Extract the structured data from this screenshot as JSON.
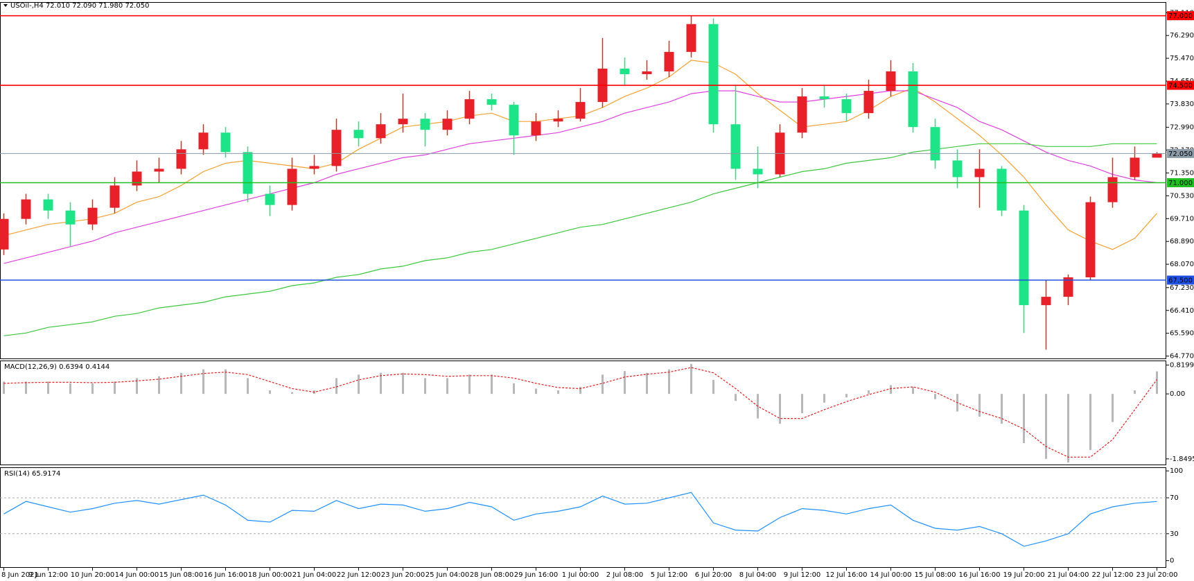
{
  "chart_data": [
    {
      "type": "candlestick",
      "title": "USOil-,H4  72.010 72.090 71.980 72.050",
      "categories": [
        "8 Jun 2021",
        null,
        "9 Jun 12:00",
        null,
        "10 Jun 20:00",
        null,
        "14 Jun 00:00",
        null,
        "15 Jun 08:00",
        null,
        "16 Jun 16:00",
        null,
        "18 Jun 00:00",
        null,
        "21 Jun 04:00",
        null,
        "22 Jun 12:00",
        null,
        "23 Jun 20:00",
        null,
        "25 Jun 04:00",
        null,
        "28 Jun 08:00",
        null,
        "29 Jun 16:00",
        null,
        "1 Jul 00:00",
        null,
        "2 Jul 08:00",
        null,
        "5 Jul 12:00",
        null,
        "6 Jul 20:00",
        null,
        "8 Jul 04:00",
        null,
        "9 Jul 12:00",
        null,
        "12 Jul 16:00",
        null,
        "14 Jul 00:00",
        null,
        "15 Jul 08:00",
        null,
        "16 Jul 16:00",
        null,
        "19 Jul 20:00",
        null,
        "21 Jul 04:00",
        null,
        "22 Jul 12:00",
        null,
        "23 Jul 20:00"
      ],
      "open": [
        68.6,
        69.7,
        70.4,
        70.0,
        69.5,
        70.1,
        70.9,
        71.4,
        71.5,
        72.2,
        72.8,
        72.1,
        70.6,
        70.2,
        71.5,
        71.6,
        72.9,
        72.6,
        73.1,
        73.3,
        72.9,
        73.3,
        74.0,
        73.8,
        72.7,
        73.2,
        73.3,
        73.9,
        75.1,
        74.9,
        75.0,
        75.7,
        76.7,
        73.1,
        71.5,
        71.3,
        72.8,
        74.1,
        74.0,
        73.5,
        74.3,
        75.0,
        73.0,
        71.8,
        71.2,
        71.5,
        70.0,
        66.6,
        66.9,
        67.6,
        70.3,
        71.2,
        71.9
      ],
      "high": [
        69.9,
        70.6,
        70.6,
        70.3,
        70.4,
        71.2,
        71.8,
        71.9,
        72.5,
        73.1,
        73.0,
        72.3,
        70.9,
        71.9,
        72.0,
        73.3,
        73.2,
        73.5,
        74.2,
        73.5,
        73.6,
        74.3,
        74.2,
        73.9,
        73.5,
        73.6,
        74.4,
        76.2,
        75.5,
        75.4,
        76.1,
        77.0,
        76.9,
        74.5,
        72.3,
        73.1,
        74.4,
        74.5,
        74.2,
        74.7,
        75.4,
        75.3,
        73.3,
        72.2,
        72.2,
        71.6,
        70.2,
        67.5,
        67.7,
        70.5,
        71.9,
        72.3,
        72.1
      ],
      "low": [
        68.4,
        69.5,
        69.7,
        68.7,
        69.3,
        69.9,
        70.7,
        71.0,
        71.3,
        72.0,
        71.9,
        70.3,
        69.8,
        70.0,
        71.3,
        71.4,
        72.3,
        72.4,
        72.8,
        72.3,
        72.7,
        73.1,
        73.6,
        72.0,
        72.5,
        73.0,
        73.2,
        73.7,
        74.5,
        74.7,
        74.8,
        75.5,
        72.8,
        71.1,
        70.8,
        71.2,
        72.6,
        73.7,
        73.2,
        73.3,
        74.1,
        72.8,
        71.5,
        70.8,
        70.1,
        69.8,
        65.6,
        65.0,
        66.6,
        67.5,
        70.1,
        71.1,
        71.9
      ],
      "close": [
        69.7,
        70.4,
        70.0,
        69.5,
        70.1,
        70.9,
        71.4,
        71.5,
        72.2,
        72.8,
        72.1,
        70.6,
        70.2,
        71.5,
        71.6,
        72.9,
        72.6,
        73.1,
        73.3,
        72.9,
        73.3,
        74.0,
        73.8,
        72.7,
        73.2,
        73.3,
        73.9,
        75.1,
        74.9,
        75.0,
        75.7,
        76.7,
        73.1,
        71.5,
        71.3,
        72.8,
        74.1,
        74.0,
        73.5,
        74.3,
        75.0,
        73.0,
        71.8,
        71.2,
        71.5,
        70.0,
        66.6,
        66.9,
        67.6,
        70.3,
        71.2,
        71.9,
        72.05
      ],
      "up_color": "#e8202a",
      "down_color": "#1de486",
      "overlays": [
        {
          "color": "#f5a030",
          "values": [
            69.1,
            69.3,
            69.5,
            69.6,
            69.7,
            69.9,
            70.3,
            70.5,
            70.9,
            71.4,
            71.7,
            71.8,
            71.7,
            71.6,
            71.5,
            71.7,
            72.2,
            72.6,
            73.0,
            73.1,
            73.2,
            73.4,
            73.5,
            73.2,
            73.2,
            73.3,
            73.4,
            73.7,
            74.1,
            74.4,
            74.8,
            75.4,
            75.3,
            74.9,
            74.2,
            73.6,
            73.0,
            73.1,
            73.2,
            73.6,
            74.1,
            74.4,
            73.9,
            73.3,
            72.7,
            72.0,
            71.2,
            70.2,
            69.3,
            68.9,
            68.6,
            69.0,
            69.9
          ]
        },
        {
          "color": "#e040e0",
          "values": [
            68.1,
            68.3,
            68.5,
            68.7,
            68.9,
            69.2,
            69.4,
            69.6,
            69.8,
            70.0,
            70.2,
            70.4,
            70.6,
            70.8,
            71.0,
            71.3,
            71.5,
            71.7,
            71.9,
            72.0,
            72.2,
            72.4,
            72.5,
            72.6,
            72.7,
            72.8,
            73.0,
            73.2,
            73.5,
            73.7,
            73.9,
            74.2,
            74.3,
            74.3,
            74.1,
            73.9,
            73.9,
            74.0,
            74.1,
            74.2,
            74.3,
            74.3,
            74.0,
            73.7,
            73.2,
            72.9,
            72.5,
            72.1,
            71.8,
            71.6,
            71.3,
            71.1,
            71.0
          ]
        },
        {
          "color": "#3cc83c",
          "values": [
            65.5,
            65.6,
            65.8,
            65.9,
            66.0,
            66.2,
            66.3,
            66.5,
            66.6,
            66.7,
            66.9,
            67.0,
            67.1,
            67.3,
            67.4,
            67.6,
            67.7,
            67.9,
            68.0,
            68.2,
            68.3,
            68.5,
            68.6,
            68.8,
            69.0,
            69.2,
            69.4,
            69.5,
            69.7,
            69.9,
            70.1,
            70.3,
            70.6,
            70.8,
            71.0,
            71.2,
            71.4,
            71.5,
            71.7,
            71.8,
            71.9,
            72.1,
            72.2,
            72.3,
            72.4,
            72.4,
            72.4,
            72.3,
            72.3,
            72.3,
            72.4,
            72.4,
            72.4
          ]
        }
      ],
      "hlines": [
        {
          "value": 77,
          "label": "77.000",
          "color": "#ff0000"
        },
        {
          "value": 74.5,
          "label": "74.500",
          "color": "#ff0000"
        },
        {
          "value": 72.05,
          "label": "72.050",
          "color": "#8a9aa6"
        },
        {
          "value": 71,
          "label": "71.000",
          "color": "#20c020"
        },
        {
          "value": 67.5,
          "label": "67.500",
          "color": "#2050e0"
        }
      ],
      "ylim": [
        64.66,
        77.49
      ],
      "yticks": [
        {
          "value": 64.77,
          "label": "64.770"
        },
        {
          "value": 65.59,
          "label": "65.590"
        },
        {
          "value": 66.41,
          "label": "66.410"
        },
        {
          "value": 67.23,
          "label": "67.230"
        },
        {
          "value": 68.07,
          "label": "68.070"
        },
        {
          "value": 68.89,
          "label": "68.890"
        },
        {
          "value": 69.71,
          "label": "69.710"
        },
        {
          "value": 70.53,
          "label": "70.530"
        },
        {
          "value": 71.35,
          "label": "71.350"
        },
        {
          "value": 72.17,
          "label": "72.170"
        },
        {
          "value": 72.99,
          "label": "72.990"
        },
        {
          "value": 73.83,
          "label": "73.830"
        },
        {
          "value": 74.65,
          "label": "74.650"
        },
        {
          "value": 75.47,
          "label": "75.470"
        },
        {
          "value": 76.29,
          "label": "76.290"
        },
        {
          "value": 77.11,
          "label": "77.110"
        }
      ]
    },
    {
      "type": "macd",
      "title": "MACD(12,26,9) 0.6394 0.4144",
      "color": "#b8b8b8",
      "values": [
        0.35,
        0.35,
        0.35,
        0.3,
        0.3,
        0.35,
        0.45,
        0.5,
        0.6,
        0.7,
        0.7,
        0.45,
        0.1,
        0.05,
        0.1,
        0.45,
        0.55,
        0.6,
        0.6,
        0.45,
        0.45,
        0.55,
        0.55,
        0.3,
        0.15,
        0.1,
        0.2,
        0.55,
        0.65,
        0.6,
        0.7,
        0.85,
        0.4,
        -0.2,
        -0.7,
        -0.85,
        -0.55,
        -0.25,
        -0.1,
        0.1,
        0.25,
        0.2,
        -0.15,
        -0.5,
        -0.65,
        -0.85,
        -1.4,
        -1.85,
        -1.95,
        -1.6,
        -0.8,
        0.1,
        0.64
      ],
      "signal": {
        "color": "#e02020",
        "values": [
          0.3,
          0.32,
          0.33,
          0.33,
          0.32,
          0.33,
          0.37,
          0.42,
          0.5,
          0.58,
          0.62,
          0.55,
          0.35,
          0.15,
          0.05,
          0.2,
          0.4,
          0.52,
          0.57,
          0.55,
          0.5,
          0.52,
          0.52,
          0.45,
          0.3,
          0.18,
          0.15,
          0.3,
          0.48,
          0.56,
          0.62,
          0.75,
          0.6,
          0.15,
          -0.35,
          -0.7,
          -0.7,
          -0.45,
          -0.22,
          -0.02,
          0.15,
          0.2,
          0.05,
          -0.25,
          -0.5,
          -0.7,
          -1.0,
          -1.5,
          -1.8,
          -1.8,
          -1.3,
          -0.45,
          0.41
        ]
      },
      "ylim": [
        -2.03,
        0.95
      ],
      "yticks": [
        0.8199,
        {
          "value": 0,
          "label": "0.00"
        },
        -1.8495
      ]
    },
    {
      "type": "line",
      "title": "RSI(14) 65.9174",
      "color": "#1e90ff",
      "values": [
        52,
        66,
        60,
        54,
        58,
        64,
        67,
        63,
        68,
        73,
        62,
        45,
        43,
        56,
        55,
        67,
        58,
        63,
        62,
        55,
        58,
        65,
        60,
        45,
        52,
        55,
        60,
        72,
        63,
        64,
        70,
        76,
        42,
        34,
        33,
        48,
        58,
        56,
        52,
        58,
        62,
        45,
        36,
        34,
        38,
        30,
        16,
        22,
        30,
        52,
        60,
        64,
        65.9
      ],
      "dashed_levels": [
        30,
        70
      ],
      "ylim": [
        -8,
        104
      ],
      "yticks": [
        0,
        30,
        70,
        100
      ]
    }
  ]
}
